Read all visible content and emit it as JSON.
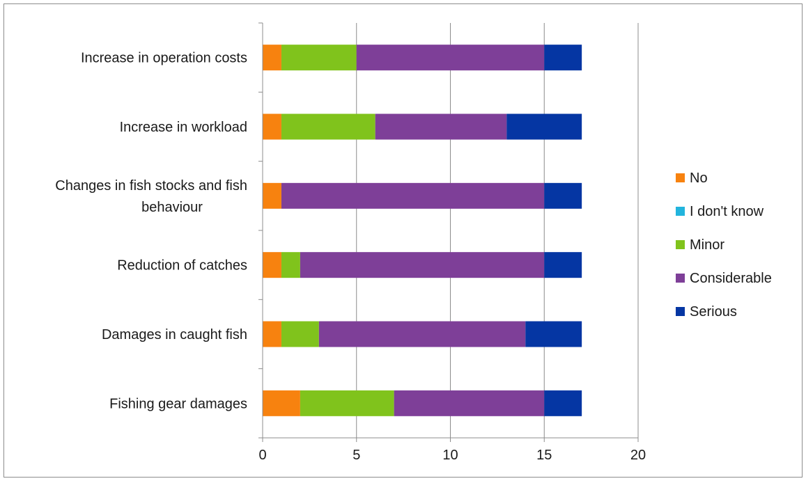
{
  "chart_data": {
    "type": "bar",
    "orientation": "horizontal",
    "stacked": true,
    "categories": [
      "Increase in operation costs",
      "Increase in workload",
      "Changes in fish stocks and fish behaviour",
      "Reduction of catches",
      "Damages in caught fish",
      "Fishing gear damages"
    ],
    "category_label_lines": [
      [
        "Increase in operation costs"
      ],
      [
        "Increase in workload"
      ],
      [
        "Changes in fish stocks and fish",
        "behaviour"
      ],
      [
        "Reduction of catches"
      ],
      [
        "Damages in caught fish"
      ],
      [
        "Fishing gear damages"
      ]
    ],
    "series": [
      {
        "name": "No",
        "color": "#F7820F",
        "values": [
          1,
          1,
          1,
          1,
          1,
          2
        ]
      },
      {
        "name": "I don't know",
        "color": "#22B4DD",
        "values": [
          0,
          0,
          0,
          0,
          0,
          0
        ]
      },
      {
        "name": "Minor",
        "color": "#80C31C",
        "values": [
          4,
          5,
          0,
          1,
          2,
          5
        ]
      },
      {
        "name": "Considerable",
        "color": "#7E3F98",
        "values": [
          10,
          7,
          14,
          13,
          11,
          8
        ]
      },
      {
        "name": "Serious",
        "color": "#0536A3",
        "values": [
          2,
          4,
          2,
          2,
          3,
          2
        ]
      }
    ],
    "xlim": [
      0,
      20
    ],
    "xticks": [
      0,
      5,
      10,
      15,
      20
    ],
    "xtick_labels": [
      "0",
      "5",
      "10",
      "15",
      "20"
    ],
    "grid": "vertical major gridlines",
    "legend_position": "right",
    "title": "",
    "xlabel": "",
    "ylabel": ""
  }
}
